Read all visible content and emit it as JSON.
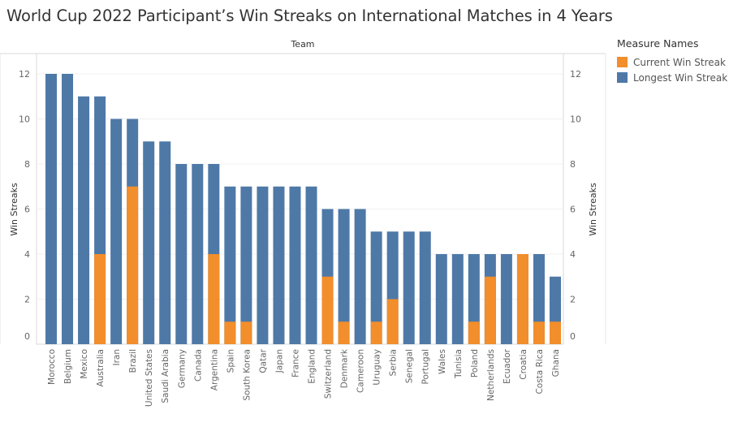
{
  "title": "World Cup 2022 Participant’s Win Streaks on International Matches in 4 Years",
  "legend": {
    "title": "Measure Names",
    "items": [
      {
        "label": "Current Win Streak",
        "color": "#F28E2B"
      },
      {
        "label": "Longest Win Streak",
        "color": "#4E79A7"
      }
    ]
  },
  "chart_data": {
    "type": "bar",
    "title": "World Cup 2022 Participant’s Win Streaks on International Matches in 4 Years",
    "column_header": "Team",
    "xlabel": "",
    "ylabel": "Win Streaks",
    "ylim": [
      0,
      13
    ],
    "yticks": [
      0,
      2,
      4,
      6,
      8,
      10,
      12
    ],
    "grid": true,
    "legend_position": "right",
    "categories": [
      "Morocco",
      "Belgium",
      "Mexico",
      "Australia",
      "Iran",
      "Brazil",
      "United States",
      "Saudi Arabia",
      "Germany",
      "Canada",
      "Argentina",
      "Spain",
      "South Korea",
      "Qatar",
      "Japan",
      "France",
      "England",
      "Switzerland",
      "Denmark",
      "Cameroon",
      "Uruguay",
      "Serbia",
      "Senegal",
      "Portugal",
      "Wales",
      "Tunisia",
      "Poland",
      "Netherlands",
      "Ecuador",
      "Croatia",
      "Costa Rica",
      "Ghana"
    ],
    "series": [
      {
        "name": "Longest Win Streak",
        "color": "#4E79A7",
        "values": [
          12,
          12,
          11,
          11,
          10,
          10,
          9,
          9,
          8,
          8,
          8,
          7,
          7,
          7,
          7,
          7,
          7,
          6,
          6,
          6,
          5,
          5,
          5,
          5,
          4,
          4,
          4,
          4,
          4,
          4,
          4,
          3
        ]
      },
      {
        "name": "Current Win Streak",
        "color": "#F28E2B",
        "values": [
          0,
          0,
          0,
          4,
          0,
          7,
          0,
          0,
          0,
          0,
          4,
          1,
          1,
          0,
          0,
          0,
          0,
          3,
          1,
          0,
          1,
          2,
          0,
          0,
          0,
          0,
          1,
          3,
          0,
          4,
          1,
          1
        ]
      }
    ]
  }
}
